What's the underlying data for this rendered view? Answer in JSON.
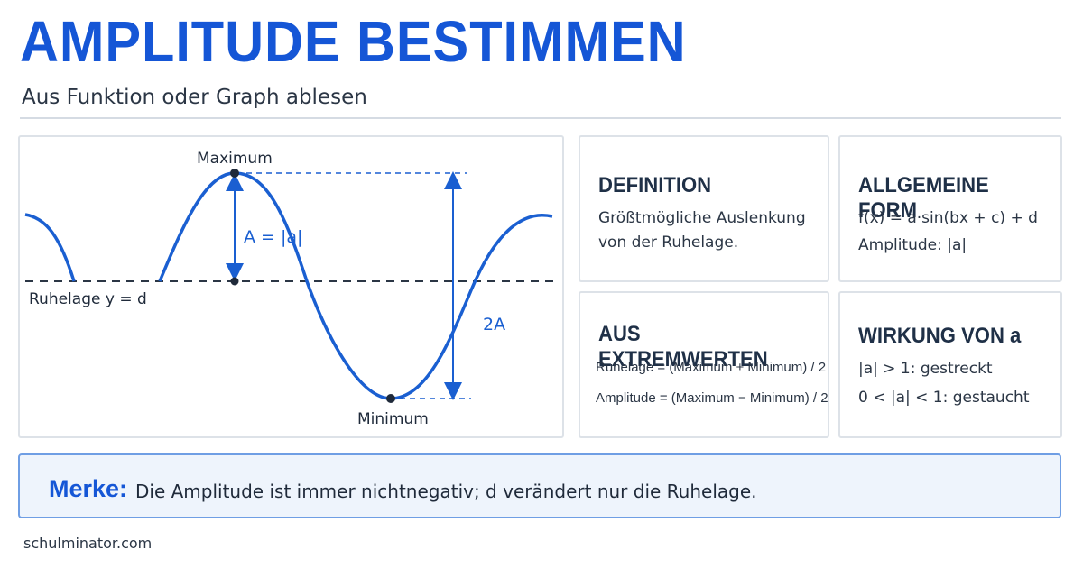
{
  "header": {
    "title": "AMPLITUDE BESTIMMEN",
    "subtitle": "Aus Funktion oder Graph ablesen"
  },
  "graph": {
    "maximum_label": "Maximum",
    "minimum_label": "Minimum",
    "rest_label": "Ruhelage y = d",
    "amplitude_label": "A = |a|",
    "double_label": "2A"
  },
  "cards": {
    "definition": {
      "title": "DEFINITION",
      "lines": [
        "Größtmögliche Auslenkung",
        "von der Ruhelage."
      ]
    },
    "general_form": {
      "title": "ALLGEMEINE FORM",
      "lines": [
        "f(x) = a·sin(bx + c) + d",
        "Amplitude: |a|"
      ]
    },
    "extremes": {
      "title": "AUS EXTREMWERTEN",
      "lines": [
        "Ruhelage = (Maximum + Minimum) / 2",
        "Amplitude = (Maximum − Minimum) / 2"
      ]
    },
    "effect": {
      "title": "WIRKUNG VON a",
      "lines": [
        "|a| > 1: gestreckt",
        "0 < |a| < 1: gestaucht"
      ]
    }
  },
  "note": {
    "label": "Merke:",
    "text": "Die Amplitude ist immer nichtnegativ; d verändert nur die Ruhelage."
  },
  "footer": "schulminator.com",
  "colors": {
    "accent": "#1556d6",
    "curve": "#1a5fd1",
    "text": "#1f2a3a",
    "border": "#dde2e8",
    "note_bg": "#eef4fc"
  }
}
